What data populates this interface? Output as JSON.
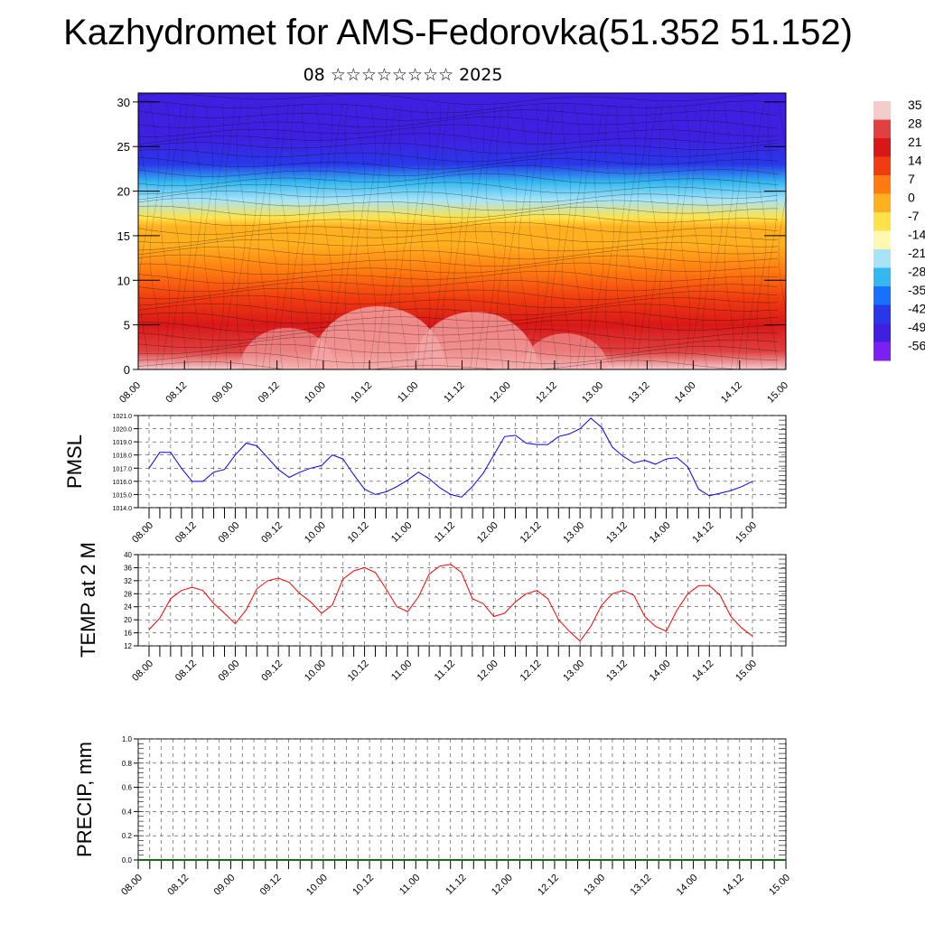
{
  "title": "Kazhydromet for AMS-Fedorovka(51.352 51.152)",
  "subtitle": "08 ☆☆☆☆☆☆☆☆ 2025",
  "time_labels": [
    "08.00",
    "08.12",
    "09.00",
    "09.12",
    "10.00",
    "10.12",
    "11.00",
    "11.12",
    "12.00",
    "12.12",
    "13.00",
    "13.12",
    "14.00",
    "14.12",
    "15.00"
  ],
  "colorbar": {
    "labels": [
      "35",
      "28",
      "21",
      "14",
      "7",
      "0",
      "-7",
      "-14",
      "-21",
      "-28",
      "-35",
      "-42",
      "-49",
      "-56"
    ],
    "colors": [
      "#f4cccc",
      "#e04040",
      "#d81818",
      "#f03c10",
      "#ff7a10",
      "#ffb020",
      "#ffe24a",
      "#fff8b0",
      "#a8e4f8",
      "#34b8f0",
      "#1870ff",
      "#2838e8",
      "#4020e0",
      "#7a20f0"
    ]
  },
  "chart_data": [
    {
      "type": "heatmap",
      "ylim": [
        0,
        30
      ],
      "yticks": [
        0,
        5,
        10,
        15,
        20,
        25,
        30
      ],
      "levels": [
        0,
        2,
        5,
        8,
        11,
        14,
        16,
        17,
        19,
        21,
        23,
        26,
        30
      ],
      "level_temps": [
        30,
        24,
        17,
        10,
        4,
        -1,
        -6,
        -12,
        -22,
        -34,
        -44,
        -50,
        -52
      ]
    },
    {
      "type": "line",
      "ylabel": "PMSL",
      "ylim": [
        1014,
        1021
      ],
      "yticks": [
        "1014.0",
        "1015.0",
        "1016.0",
        "1017.0",
        "1018.0",
        "1019.0",
        "1020.0",
        "1021.0"
      ],
      "color": "#0000ff",
      "values": [
        1017.0,
        1018.2,
        1018.2,
        1017.0,
        1016.0,
        1016.0,
        1016.7,
        1016.9,
        1018.0,
        1018.9,
        1018.7,
        1017.8,
        1016.9,
        1016.3,
        1016.7,
        1017.0,
        1017.2,
        1018.0,
        1017.7,
        1016.5,
        1015.4,
        1015.0,
        1015.2,
        1015.6,
        1016.1,
        1016.7,
        1016.2,
        1015.5,
        1015.0,
        1014.8,
        1015.6,
        1016.6,
        1018.0,
        1019.4,
        1019.5,
        1018.9,
        1018.8,
        1018.8,
        1019.4,
        1019.6,
        1020.0,
        1020.8,
        1020.1,
        1018.6,
        1017.9,
        1017.4,
        1017.6,
        1017.3,
        1017.7,
        1017.8,
        1017.1,
        1015.4,
        1014.9,
        1015.1,
        1015.3,
        1015.6,
        1016.0
      ]
    },
    {
      "type": "line",
      "ylabel": "TEMP at 2 M",
      "ylim": [
        12,
        40
      ],
      "yticks": [
        "12",
        "16",
        "20",
        "24",
        "28",
        "32",
        "36",
        "40"
      ],
      "color": "#ff0000",
      "values": [
        17.0,
        20.5,
        26.5,
        29.0,
        30.0,
        29.0,
        25.0,
        22.0,
        18.8,
        23.0,
        29.5,
        32.0,
        32.8,
        31.5,
        28.0,
        25.5,
        22.0,
        24.5,
        32.5,
        35.0,
        36.0,
        34.5,
        29.5,
        24.0,
        22.5,
        27.0,
        34.0,
        36.5,
        37.0,
        34.5,
        26.5,
        25.0,
        21.0,
        22.0,
        25.5,
        28.0,
        29.0,
        26.5,
        20.0,
        16.5,
        13.5,
        18.0,
        24.5,
        28.0,
        29.0,
        27.5,
        21.0,
        18.0,
        16.5,
        23.0,
        28.0,
        30.5,
        30.5,
        27.5,
        21.0,
        17.5,
        15.0
      ]
    },
    {
      "type": "bar",
      "ylabel": "PRECIP, mm",
      "ylim": [
        0,
        1
      ],
      "yticks": [
        "0.0",
        "0.2",
        "0.4",
        "0.6",
        "0.8",
        "1.0"
      ],
      "values": [
        0,
        0,
        0,
        0,
        0,
        0,
        0,
        0,
        0,
        0,
        0,
        0,
        0,
        0,
        0,
        0,
        0,
        0,
        0,
        0,
        0,
        0,
        0,
        0,
        0,
        0,
        0,
        0,
        0,
        0,
        0,
        0,
        0,
        0,
        0,
        0,
        0,
        0,
        0,
        0,
        0,
        0,
        0,
        0,
        0,
        0,
        0,
        0,
        0,
        0,
        0,
        0,
        0,
        0,
        0,
        0,
        0
      ]
    }
  ]
}
